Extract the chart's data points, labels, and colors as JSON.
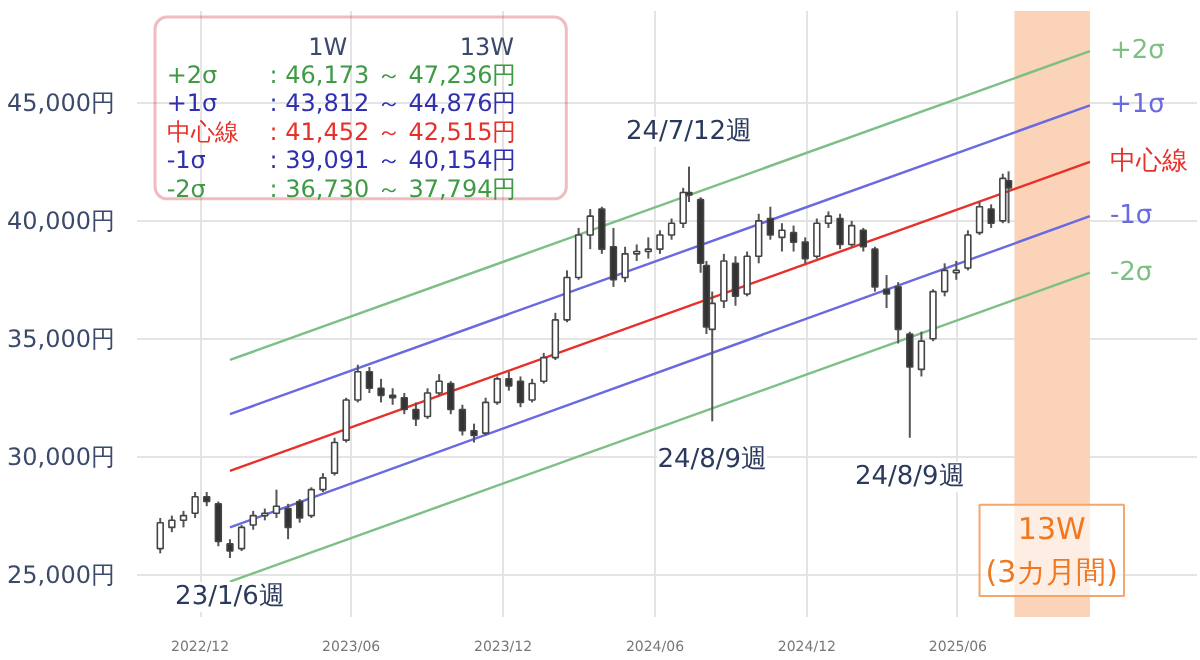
{
  "chart_data": {
    "type": "candlestick",
    "x": [
      "2022-10-14",
      "2022-10-28",
      "2022-11-11",
      "2022-11-25",
      "2022-12-09",
      "2022-12-23",
      "2023-01-06",
      "2023-01-20",
      "2023-02-03",
      "2023-02-17",
      "2023-03-03",
      "2023-03-17",
      "2023-03-31",
      "2023-04-14",
      "2023-04-28",
      "2023-05-12",
      "2023-05-26",
      "2023-06-09",
      "2023-06-23",
      "2023-07-07",
      "2023-07-21",
      "2023-08-04",
      "2023-08-18",
      "2023-09-01",
      "2023-09-15",
      "2023-09-29",
      "2023-10-13",
      "2023-10-27",
      "2023-11-10",
      "2023-11-24",
      "2023-12-08",
      "2023-12-22",
      "2024-01-05",
      "2024-01-19",
      "2024-02-02",
      "2024-02-16",
      "2024-03-01",
      "2024-03-15",
      "2024-03-29",
      "2024-04-12",
      "2024-04-26",
      "2024-05-10",
      "2024-05-24",
      "2024-06-07",
      "2024-06-21",
      "2024-07-05",
      "2024-07-12",
      "2024-07-26",
      "2024-08-02",
      "2024-08-09",
      "2024-08-23",
      "2024-09-06",
      "2024-09-20",
      "2024-10-04",
      "2024-10-18",
      "2024-11-01",
      "2024-11-15",
      "2024-11-29",
      "2024-12-13",
      "2024-12-27",
      "2025-01-10",
      "2025-01-24",
      "2025-02-07",
      "2025-02-21",
      "2025-03-07",
      "2025-03-21",
      "2025-04-04",
      "2025-04-18",
      "2025-05-02",
      "2025-05-16",
      "2025-05-30",
      "2025-06-13",
      "2025-06-27",
      "2025-07-11",
      "2025-07-25",
      "2025-08-01"
    ],
    "ohlc": [
      [
        26100,
        27400,
        25900,
        27200
      ],
      [
        27000,
        27500,
        26800,
        27300
      ],
      [
        27300,
        27700,
        27000,
        27500
      ],
      [
        27600,
        28500,
        27400,
        28300
      ],
      [
        28300,
        28500,
        27900,
        28100
      ],
      [
        28000,
        28100,
        26200,
        26400
      ],
      [
        26300,
        26500,
        25700,
        26000
      ],
      [
        26100,
        27100,
        26000,
        27000
      ],
      [
        27100,
        27700,
        26900,
        27500
      ],
      [
        27500,
        27800,
        27300,
        27600
      ],
      [
        27600,
        28600,
        27400,
        27900
      ],
      [
        27800,
        28000,
        26500,
        27000
      ],
      [
        28100,
        28200,
        27200,
        27400
      ],
      [
        27500,
        28700,
        27400,
        28600
      ],
      [
        28600,
        29300,
        28500,
        29100
      ],
      [
        29300,
        30800,
        29200,
        30600
      ],
      [
        30700,
        32500,
        30600,
        32400
      ],
      [
        32400,
        33900,
        32300,
        33600
      ],
      [
        33600,
        33800,
        32700,
        32900
      ],
      [
        32900,
        33300,
        32300,
        32600
      ],
      [
        32600,
        32900,
        32200,
        32500
      ],
      [
        32500,
        32700,
        31800,
        32000
      ],
      [
        32000,
        32300,
        31300,
        31600
      ],
      [
        31700,
        32900,
        31600,
        32700
      ],
      [
        32700,
        33500,
        32600,
        33200
      ],
      [
        33100,
        33200,
        31800,
        32000
      ],
      [
        32000,
        32200,
        30900,
        31100
      ],
      [
        31100,
        31400,
        30600,
        30900
      ],
      [
        31000,
        32500,
        30900,
        32300
      ],
      [
        32300,
        33400,
        32200,
        33300
      ],
      [
        33300,
        33600,
        32800,
        33000
      ],
      [
        33200,
        33400,
        32100,
        32300
      ],
      [
        32400,
        33300,
        32300,
        33100
      ],
      [
        33200,
        34400,
        33100,
        34200
      ],
      [
        34200,
        36100,
        34100,
        35800
      ],
      [
        35800,
        37900,
        35700,
        37600
      ],
      [
        37600,
        39700,
        37500,
        39400
      ],
      [
        39400,
        40500,
        38800,
        40200
      ],
      [
        40500,
        40600,
        38600,
        38800
      ],
      [
        38900,
        39700,
        37200,
        37500
      ],
      [
        37600,
        38900,
        37400,
        38600
      ],
      [
        38600,
        39000,
        38300,
        38700
      ],
      [
        38700,
        39300,
        38400,
        38800
      ],
      [
        38800,
        39600,
        38600,
        39400
      ],
      [
        39400,
        40100,
        39200,
        39900
      ],
      [
        39900,
        41400,
        39700,
        41200
      ],
      [
        41200,
        42300,
        40800,
        41100
      ],
      [
        40900,
        41000,
        37800,
        38200
      ],
      [
        38100,
        38300,
        35200,
        35500
      ],
      [
        35400,
        37000,
        31500,
        36500
      ],
      [
        36600,
        38600,
        36300,
        38300
      ],
      [
        38200,
        38500,
        36400,
        36800
      ],
      [
        36900,
        38700,
        36800,
        38500
      ],
      [
        38500,
        40300,
        38200,
        40000
      ],
      [
        40100,
        40600,
        39200,
        39400
      ],
      [
        39300,
        39900,
        38700,
        39600
      ],
      [
        39500,
        39800,
        38700,
        39100
      ],
      [
        39100,
        39300,
        38200,
        38400
      ],
      [
        38500,
        40100,
        38400,
        39900
      ],
      [
        39900,
        40400,
        39700,
        40200
      ],
      [
        40100,
        40300,
        38800,
        39000
      ],
      [
        39000,
        40000,
        38900,
        39800
      ],
      [
        39600,
        39700,
        38700,
        38900
      ],
      [
        38800,
        38900,
        37000,
        37200
      ],
      [
        37100,
        37700,
        36300,
        36900
      ],
      [
        37200,
        37400,
        34800,
        35400
      ],
      [
        35200,
        35300,
        30800,
        33800
      ],
      [
        33700,
        35300,
        33400,
        34900
      ],
      [
        35000,
        37100,
        34900,
        37000
      ],
      [
        37000,
        38200,
        36800,
        37900
      ],
      [
        37800,
        38300,
        37500,
        37900
      ],
      [
        38000,
        39600,
        37900,
        39400
      ],
      [
        39500,
        40800,
        39400,
        40600
      ],
      [
        40500,
        40700,
        39700,
        39900
      ],
      [
        40000,
        42000,
        39900,
        41800
      ],
      [
        41700,
        42100,
        39900,
        41400
      ]
    ],
    "series": [
      {
        "name": "+2σ",
        "type": "line",
        "color": "#7dbf85",
        "x": [
          "2023-01-06",
          "2025-11-07"
        ],
        "values": [
          34100,
          47200
        ]
      },
      {
        "name": "+1σ",
        "type": "line",
        "color": "#6a6ae0",
        "x": [
          "2023-01-06",
          "2025-11-07"
        ],
        "values": [
          31800,
          44900
        ]
      },
      {
        "name": "中心線",
        "type": "line",
        "color": "#e8302a",
        "x": [
          "2023-01-06",
          "2025-11-07"
        ],
        "values": [
          29400,
          42500
        ]
      },
      {
        "name": "-1σ",
        "type": "line",
        "color": "#6a6ae0",
        "x": [
          "2023-01-06",
          "2025-11-07"
        ],
        "values": [
          27000,
          40200
        ]
      },
      {
        "name": "-2σ",
        "type": "line",
        "color": "#7dbf85",
        "x": [
          "2023-01-06",
          "2025-11-07"
        ],
        "values": [
          24700,
          37800
        ]
      }
    ],
    "xlim": [
      "2022-09-16",
      "2026-03-16"
    ],
    "xticks": [
      {
        "value": "2022-12-01",
        "label": "2022/12"
      },
      {
        "value": "2023-06-01",
        "label": "2023/06"
      },
      {
        "value": "2023-12-01",
        "label": "2023/12"
      },
      {
        "value": "2024-06-01",
        "label": "2024/06"
      },
      {
        "value": "2024-12-01",
        "label": "2024/12"
      },
      {
        "value": "2025-06-01",
        "label": "2025/06"
      }
    ],
    "ylim": [
      23200,
      48900
    ],
    "yticks": [
      {
        "value": 25000,
        "label": "25,000円"
      },
      {
        "value": 30000,
        "label": "30,000円"
      },
      {
        "value": 35000,
        "label": "35,000円"
      },
      {
        "value": 40000,
        "label": "40,000円"
      },
      {
        "value": 45000,
        "label": "45,000円"
      }
    ],
    "grid": true,
    "bands": [
      {
        "axis": "x",
        "from": "2025-08-08",
        "to": "2025-11-07",
        "color": "#fbd3b8"
      }
    ],
    "annotations": [
      "1W",
      "13W",
      "+2σ : 46,173 ～ 47,236円",
      "+1σ : 43,812 ～ 44,876円",
      "中心線 : 41,452 ～ 42,515円",
      "-1σ : 39,091 ～ 40,154円",
      "-2σ : 36,730 ～ 37,794円",
      "13W\n(3カ月間)",
      {
        "text": "23/1/6週",
        "x": "2023-01-06",
        "y": 25700
      },
      {
        "text": "24/7/12週",
        "x": "2024-07-12",
        "y": 42300
      },
      {
        "text": "24/8/9週",
        "x": "2024-08-09",
        "y": 31500
      },
      {
        "text": "24/8/9週",
        "x": "2025-04-04",
        "y": 30800
      }
    ]
  }
}
